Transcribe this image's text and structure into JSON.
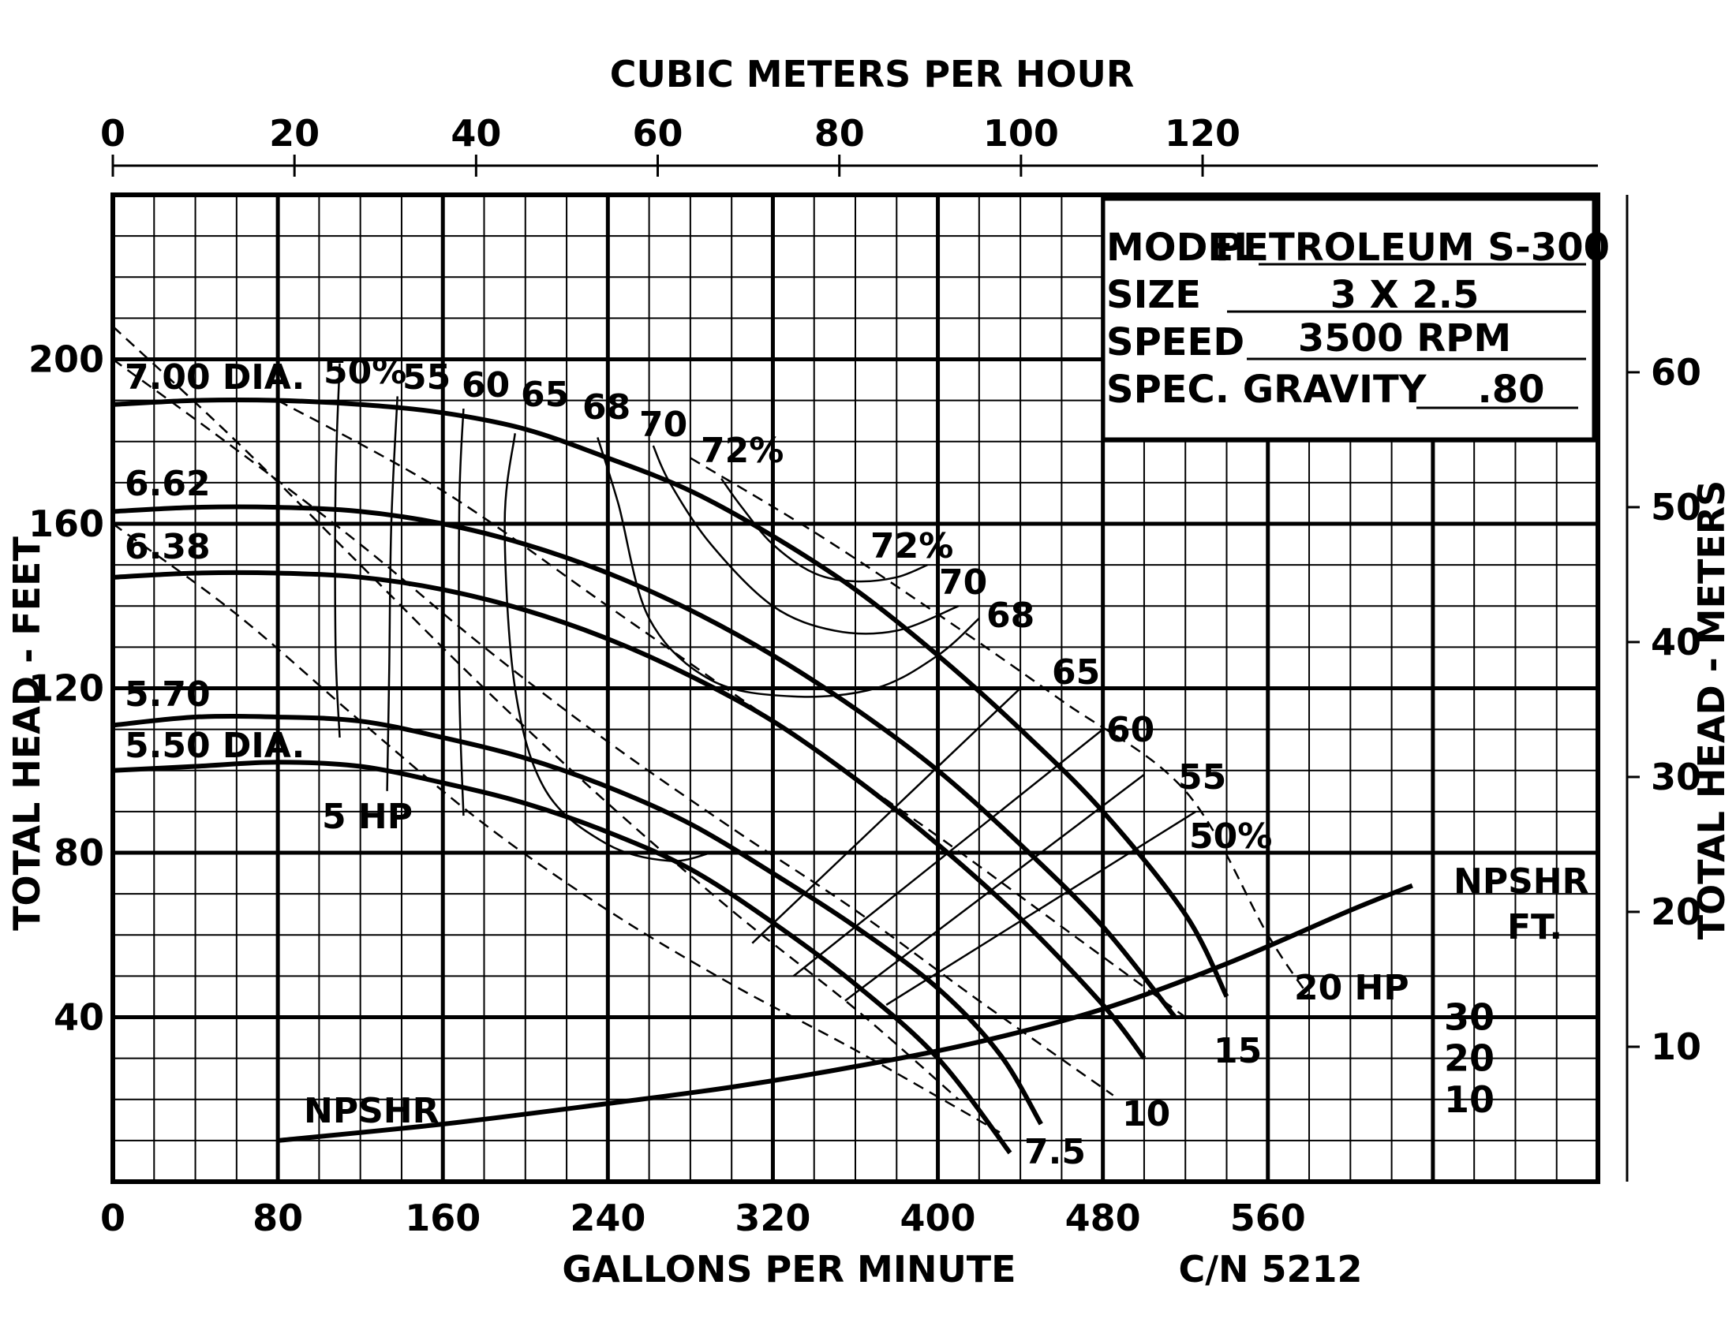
{
  "chart_data": {
    "type": "line",
    "x_unit_label": "GALLONS PER MINUTE",
    "x2_unit_label": "CUBIC METERS PER HOUR",
    "y_unit_label": "TOTAL HEAD - FEET",
    "y2_unit_label": "TOTAL HEAD - METERS",
    "x_ticks": [
      "0",
      "80",
      "160",
      "240",
      "320",
      "400",
      "480",
      "560"
    ],
    "x2_ticks": [
      "0",
      "20",
      "40",
      "60",
      "80",
      "100",
      "120"
    ],
    "y_ticks": [
      "40",
      "80",
      "120",
      "160",
      "200"
    ],
    "y2_ticks": [
      "10",
      "20",
      "30",
      "40",
      "50",
      "60"
    ],
    "npshr_ticks": [
      "10",
      "20",
      "30"
    ],
    "catalog_number": "C/N 5212",
    "xlim": [
      0,
      720
    ],
    "ylim": [
      0,
      240
    ],
    "grid": true,
    "info": {
      "model_label": "MODEL",
      "model_value": "PETROLEUM S-300",
      "size_label": "SIZE",
      "size_value": "3 X 2.5",
      "speed_label": "SPEED",
      "speed_value": "3500 RPM",
      "gravity_label": "SPEC. GRAVITY",
      "gravity_value": ".80"
    },
    "head_curves": [
      {
        "label": "7.00 DIA.",
        "points": [
          [
            0,
            189
          ],
          [
            40,
            190
          ],
          [
            80,
            190
          ],
          [
            120,
            189
          ],
          [
            160,
            187
          ],
          [
            200,
            183
          ],
          [
            240,
            176
          ],
          [
            280,
            168
          ],
          [
            320,
            157
          ],
          [
            360,
            144
          ],
          [
            400,
            128
          ],
          [
            440,
            110
          ],
          [
            480,
            90
          ],
          [
            520,
            65
          ],
          [
            540,
            45
          ]
        ]
      },
      {
        "label": "6.62",
        "points": [
          [
            0,
            163
          ],
          [
            40,
            164
          ],
          [
            80,
            164
          ],
          [
            120,
            163
          ],
          [
            160,
            160
          ],
          [
            200,
            155
          ],
          [
            240,
            148
          ],
          [
            280,
            139
          ],
          [
            320,
            128
          ],
          [
            360,
            115
          ],
          [
            400,
            100
          ],
          [
            440,
            82
          ],
          [
            480,
            62
          ],
          [
            515,
            40
          ]
        ]
      },
      {
        "label": "6.38",
        "points": [
          [
            0,
            147
          ],
          [
            40,
            148
          ],
          [
            80,
            148
          ],
          [
            120,
            147
          ],
          [
            160,
            144
          ],
          [
            200,
            139
          ],
          [
            240,
            132
          ],
          [
            280,
            123
          ],
          [
            320,
            112
          ],
          [
            360,
            98
          ],
          [
            400,
            82
          ],
          [
            440,
            64
          ],
          [
            480,
            43
          ],
          [
            500,
            30
          ]
        ]
      },
      {
        "label": "5.70",
        "points": [
          [
            0,
            111
          ],
          [
            40,
            113
          ],
          [
            80,
            113
          ],
          [
            120,
            112
          ],
          [
            160,
            108
          ],
          [
            200,
            103
          ],
          [
            240,
            96
          ],
          [
            280,
            87
          ],
          [
            320,
            75
          ],
          [
            360,
            62
          ],
          [
            400,
            47
          ],
          [
            430,
            31
          ],
          [
            450,
            14
          ]
        ]
      },
      {
        "label": "5.50 DIA.",
        "points": [
          [
            0,
            100
          ],
          [
            40,
            101
          ],
          [
            80,
            102
          ],
          [
            120,
            101
          ],
          [
            160,
            97
          ],
          [
            200,
            92
          ],
          [
            240,
            85
          ],
          [
            280,
            76
          ],
          [
            320,
            63
          ],
          [
            360,
            48
          ],
          [
            400,
            30
          ],
          [
            435,
            7
          ]
        ]
      }
    ],
    "efficiency_labels": [
      "50%",
      "55",
      "60",
      "65",
      "68",
      "70",
      "72%"
    ],
    "efficiency_curves": [
      {
        "label": "72%",
        "points": [
          [
            295,
            171
          ],
          [
            305,
            164
          ],
          [
            320,
            155
          ],
          [
            340,
            148
          ],
          [
            360,
            146
          ],
          [
            380,
            147
          ],
          [
            395,
            150
          ]
        ]
      },
      {
        "label": "70",
        "points": [
          [
            262,
            179
          ],
          [
            270,
            170
          ],
          [
            290,
            155
          ],
          [
            320,
            140
          ],
          [
            350,
            134
          ],
          [
            380,
            134
          ],
          [
            410,
            140
          ]
        ]
      },
      {
        "label": "68",
        "points": [
          [
            235,
            181
          ],
          [
            245,
            165
          ],
          [
            260,
            137
          ],
          [
            290,
            122
          ],
          [
            330,
            118
          ],
          [
            370,
            120
          ],
          [
            400,
            128
          ],
          [
            420,
            137
          ]
        ]
      },
      {
        "label": "65",
        "points": [
          [
            195,
            182
          ],
          [
            190,
            160
          ],
          [
            195,
            120
          ],
          [
            210,
            95
          ],
          [
            240,
            82
          ],
          [
            270,
            78
          ],
          [
            290,
            80
          ]
        ]
      },
      {
        "label": "60",
        "points": [
          [
            170,
            188
          ],
          [
            168,
            165
          ],
          [
            168,
            120
          ],
          [
            170,
            89
          ]
        ]
      },
      {
        "label": "55",
        "points": [
          [
            138,
            191
          ],
          [
            135,
            160
          ],
          [
            134,
            125
          ],
          [
            133,
            95
          ]
        ]
      },
      {
        "label": "50%",
        "points": [
          [
            110,
            199
          ],
          [
            108,
            170
          ],
          [
            108,
            130
          ],
          [
            110,
            108
          ]
        ]
      }
    ],
    "efficiency_rays": [
      {
        "label": "65",
        "points": [
          [
            440,
            120
          ],
          [
            310,
            58
          ]
        ]
      },
      {
        "label": "60",
        "points": [
          [
            480,
            110
          ],
          [
            330,
            50
          ]
        ]
      },
      {
        "label": "55",
        "points": [
          [
            500,
            99
          ],
          [
            355,
            44
          ]
        ]
      },
      {
        "label": "50%",
        "points": [
          [
            525,
            90
          ],
          [
            375,
            43
          ]
        ]
      }
    ],
    "hp_lines": [
      {
        "label": "5 HP",
        "points": [
          [
            0,
            208
          ],
          [
            60,
            180
          ],
          [
            120,
            150
          ],
          [
            180,
            120
          ],
          [
            240,
            92
          ],
          [
            300,
            66
          ],
          [
            360,
            42
          ],
          [
            410,
            20
          ]
        ]
      },
      {
        "label": "7.5",
        "points": [
          [
            0,
            160
          ],
          [
            60,
            138
          ],
          [
            120,
            112
          ],
          [
            180,
            87
          ],
          [
            240,
            66
          ],
          [
            300,
            48
          ],
          [
            360,
            32
          ],
          [
            430,
            12
          ]
        ]
      },
      {
        "label": "10",
        "points": [
          [
            0,
            200
          ],
          [
            60,
            178
          ],
          [
            120,
            155
          ],
          [
            180,
            130
          ],
          [
            240,
            107
          ],
          [
            300,
            86
          ],
          [
            360,
            66
          ],
          [
            420,
            44
          ],
          [
            485,
            21
          ]
        ]
      },
      {
        "label": "15",
        "points": [
          [
            80,
            190
          ],
          [
            160,
            168
          ],
          [
            240,
            140
          ],
          [
            320,
            112
          ],
          [
            400,
            84
          ],
          [
            460,
            62
          ],
          [
            520,
            40
          ]
        ]
      },
      {
        "label": "20 HP",
        "points": [
          [
            280,
            176
          ],
          [
            340,
            158
          ],
          [
            400,
            138
          ],
          [
            460,
            117
          ],
          [
            520,
            95
          ],
          [
            560,
            60
          ],
          [
            580,
            45
          ]
        ]
      }
    ],
    "npshr_curve": {
      "label": "NPSHR",
      "label2": "FT.",
      "points": [
        [
          80,
          10
        ],
        [
          160,
          14
        ],
        [
          240,
          19
        ],
        [
          300,
          23
        ],
        [
          360,
          28
        ],
        [
          420,
          34
        ],
        [
          480,
          42
        ],
        [
          540,
          53
        ],
        [
          600,
          66
        ],
        [
          630,
          72
        ]
      ]
    }
  }
}
